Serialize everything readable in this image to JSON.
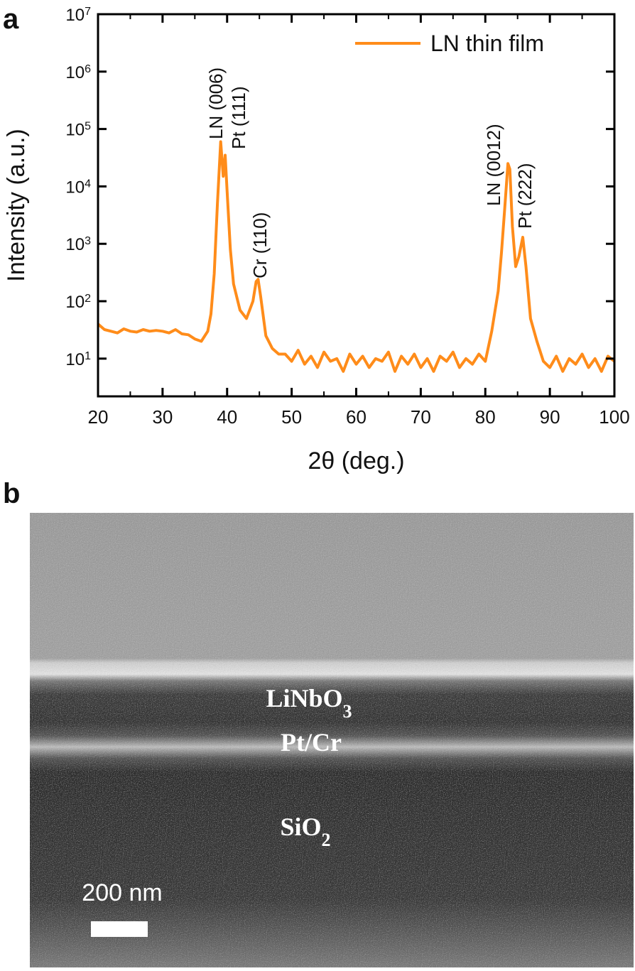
{
  "chart_data": {
    "type": "line",
    "yscale": "log",
    "xlabel": "2θ (deg.)",
    "ylabel": "Intensity (a.u.)",
    "xlim": [
      20,
      100
    ],
    "xticks": [
      20,
      30,
      40,
      50,
      60,
      70,
      80,
      90,
      100
    ],
    "xminorticks": [
      25,
      35,
      45,
      55,
      65,
      75,
      85,
      95
    ],
    "ylim": [
      2.2,
      10000000
    ],
    "yticks": [
      {
        "value": 10,
        "label": "10",
        "exponent": "1"
      },
      {
        "value": 100,
        "label": "10",
        "exponent": "2"
      },
      {
        "value": 1000,
        "label": "10",
        "exponent": "3"
      },
      {
        "value": 10000,
        "label": "10",
        "exponent": "4"
      },
      {
        "value": 100000,
        "label": "10",
        "exponent": "5"
      },
      {
        "value": 1000000,
        "label": "10",
        "exponent": "6"
      },
      {
        "value": 10000000,
        "label": "10",
        "exponent": "7"
      }
    ],
    "legend": "upper right",
    "annotations": [
      "LN (006)",
      "Pt (111)",
      "Cr (110)",
      "LN (0012)",
      "Pt (222)"
    ],
    "x": [
      20,
      21,
      22,
      23,
      24,
      25,
      26,
      27,
      28,
      29,
      30,
      31,
      32,
      33,
      34,
      35,
      36,
      37,
      37.5,
      38,
      38.5,
      39,
      39.4,
      39.7,
      40,
      40.5,
      41,
      42,
      43,
      44,
      44.5,
      44.8,
      45.2,
      46,
      47,
      48,
      49,
      50,
      51,
      52,
      53,
      54,
      55,
      56,
      57,
      58,
      59,
      60,
      61,
      62,
      63,
      64,
      65,
      66,
      67,
      68,
      69,
      70,
      71,
      72,
      73,
      74,
      75,
      76,
      77,
      78,
      79,
      80,
      81,
      82,
      82.5,
      83,
      83.5,
      83.8,
      84.2,
      84.7,
      85.2,
      85.8,
      86.3,
      87,
      88,
      89,
      90,
      91,
      92,
      93,
      94,
      95,
      96,
      97,
      98,
      99,
      100
    ],
    "series": [
      {
        "name": "LN thin film",
        "color": "#ff8c1a",
        "values": [
          40,
          32,
          30,
          28,
          33,
          30,
          29,
          32,
          30,
          31,
          30,
          28,
          32,
          27,
          26,
          22,
          20,
          30,
          60,
          300,
          5000,
          60000,
          15000,
          35000,
          8000,
          800,
          200,
          70,
          50,
          100,
          220,
          240,
          120,
          25,
          15,
          12,
          12,
          9,
          14,
          8,
          11,
          7,
          13,
          9,
          10,
          6,
          12,
          8,
          11,
          7,
          10,
          9,
          13,
          6,
          11,
          8,
          12,
          7,
          10,
          6,
          11,
          9,
          13,
          7,
          10,
          8,
          12,
          9,
          30,
          150,
          700,
          4000,
          25000,
          20000,
          2000,
          400,
          600,
          1300,
          400,
          50,
          20,
          9,
          7,
          11,
          6,
          10,
          8,
          12,
          7,
          10,
          6,
          11,
          9
        ]
      }
    ]
  },
  "panel_labels": [
    "a",
    "b"
  ],
  "image": {
    "labels": [
      {
        "text": "LiNbO",
        "subscript": "3"
      },
      {
        "text": "Pt/Cr"
      },
      {
        "text": "SiO",
        "subscript": "2"
      }
    ],
    "scale_bar": "200 nm"
  }
}
